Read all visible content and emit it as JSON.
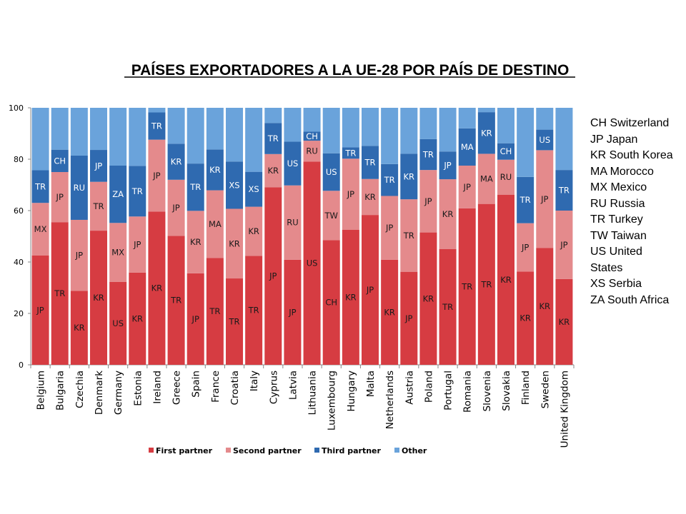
{
  "chart_data": {
    "type": "stacked_bar_100",
    "title": "PAÍSES EXPORTADORES A LA UE-28 POR PAÍS DE DESTINO",
    "ylim": [
      0,
      100
    ],
    "yticks": [
      0,
      20,
      40,
      60,
      80,
      100
    ],
    "colors": {
      "first": "#d63c42",
      "second": "#e48a8c",
      "third": "#2f6ab0",
      "other": "#6aa3db"
    },
    "legend": [
      {
        "key": "first",
        "label": "First partner"
      },
      {
        "key": "second",
        "label": "Second partner"
      },
      {
        "key": "third",
        "label": "Third partner"
      },
      {
        "key": "other",
        "label": "Other"
      }
    ],
    "categories": [
      "Belgium",
      "Bulgaria",
      "Czechia",
      "Denmark",
      "Germany",
      "Estonia",
      "Ireland",
      "Greece",
      "Spain",
      "France",
      "Croatia",
      "Italy",
      "Cyprus",
      "Latvia",
      "Lithuania",
      "Luxembourg",
      "Hungary",
      "Malta",
      "Netherlands",
      "Austria",
      "Poland",
      "Portugal",
      "Romania",
      "Slovenia",
      "Slovakia",
      "Finland",
      "Sweden",
      "United Kingdom"
    ],
    "series": [
      {
        "name": "First partner",
        "values": [
          42.5,
          55.5,
          28.8,
          52.2,
          32.3,
          35.9,
          59.6,
          50.2,
          35.6,
          41.6,
          33.6,
          42.4,
          69.1,
          40.9,
          79.1,
          48.5,
          52.5,
          58.3,
          40.9,
          36.2,
          51.5,
          45.0,
          60.9,
          62.6,
          66.2,
          36.3,
          45.5,
          33.4
        ],
        "partners": [
          "JP",
          "TR",
          "KR",
          "KR",
          "US",
          "KR",
          "KR",
          "TR",
          "JP",
          "TR",
          "TR",
          "TR",
          "JP",
          "JP",
          "US",
          "CH",
          "KR",
          "JP",
          "KR",
          "JP",
          "KR",
          "TR",
          "TR",
          "TR",
          "KR",
          "KR",
          "KR",
          "KR"
        ]
      },
      {
        "name": "Second partner",
        "values": [
          20.5,
          19.5,
          27.6,
          19.0,
          22.9,
          21.8,
          28.0,
          21.8,
          24.3,
          26.3,
          27.1,
          19.1,
          12.9,
          28.9,
          8.1,
          19.2,
          27.7,
          14.0,
          24.8,
          28.2,
          24.3,
          27.2,
          16.6,
          19.5,
          13.6,
          18.8,
          38.0,
          26.6
        ],
        "partners": [
          "MX",
          "JP",
          "JP",
          "TR",
          "MX",
          "JP",
          "JP",
          "JP",
          "KR",
          "MA",
          "KR",
          "KR",
          "KR",
          "RU",
          "RU",
          "TW",
          "JP",
          "KR",
          "JP",
          "TR",
          "JP",
          "KR",
          "JP",
          "MA",
          "RU",
          "JP",
          "JP",
          "JP"
        ]
      },
      {
        "name": "Third partner",
        "values": [
          12.7,
          8.7,
          25.0,
          12.4,
          22.3,
          19.7,
          10.6,
          14.0,
          18.4,
          15.9,
          18.4,
          13.6,
          12.1,
          17.0,
          3.5,
          14.6,
          4.4,
          12.9,
          12.4,
          17.7,
          12.0,
          10.8,
          14.5,
          16.2,
          6.4,
          18.0,
          8.0,
          15.8
        ],
        "partners": [
          "TR",
          "CH",
          "RU",
          "JP",
          "ZA",
          "TR",
          "TR",
          "KR",
          "TR",
          "KR",
          "XS",
          "XS",
          "TR",
          "US",
          "CH",
          "US",
          "TR",
          "TR",
          "TR",
          "KR",
          "TR",
          "JP",
          "MA",
          "KR",
          "CH",
          "TR",
          "US",
          "TR"
        ]
      },
      {
        "name": "Other",
        "values": [
          24.3,
          16.3,
          18.6,
          16.4,
          22.5,
          22.6,
          1.8,
          14.0,
          21.7,
          16.2,
          20.9,
          24.9,
          5.9,
          13.2,
          9.3,
          17.7,
          15.4,
          14.8,
          21.9,
          17.9,
          12.2,
          17.0,
          8.0,
          1.7,
          13.8,
          26.9,
          8.5,
          24.2
        ]
      }
    ]
  },
  "code_legend": [
    "CH Switzerland",
    "JP Japan",
    "KR South Korea",
    "MA Morocco",
    "MX Mexico",
    "RU Russia",
    "TR Turkey",
    "TW Taiwan",
    "US United",
    "States",
    "XS Serbia",
    "ZA South Africa"
  ]
}
